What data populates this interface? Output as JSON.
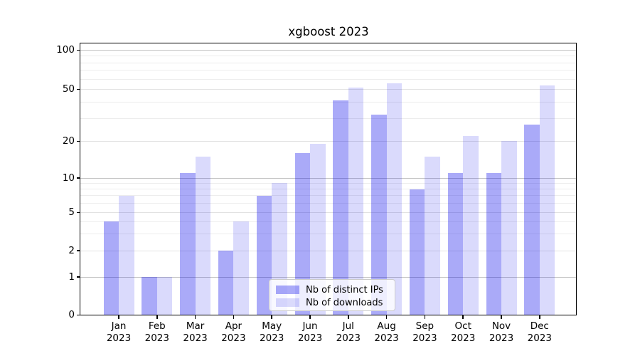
{
  "title": "xgboost 2023",
  "chart_data": {
    "type": "bar",
    "title": "xgboost 2023",
    "categories": [
      "Jan 2023",
      "Feb 2023",
      "Mar 2023",
      "Apr 2023",
      "May 2023",
      "Jun 2023",
      "Jul 2023",
      "Aug 2023",
      "Sep 2023",
      "Oct 2023",
      "Nov 2023",
      "Dec 2023"
    ],
    "month_labels": [
      "Jan",
      "Feb",
      "Mar",
      "Apr",
      "May",
      "Jun",
      "Jul",
      "Aug",
      "Sep",
      "Oct",
      "Nov",
      "Dec"
    ],
    "year_label": "2023",
    "series": [
      {
        "name": "Nb of distinct IPs",
        "values": [
          4,
          1,
          11,
          2,
          7,
          16,
          41,
          32,
          8,
          11,
          11,
          27
        ],
        "color": "#a8a8f8",
        "color_rgba": "rgba(10,10,235,0.345)"
      },
      {
        "name": "Nb of downloads",
        "values": [
          7,
          1,
          15,
          4,
          9,
          19,
          52,
          56,
          15,
          22,
          20,
          54
        ],
        "color": "#d8d8fa",
        "color_rgba": "rgba(10,10,235,0.15)"
      }
    ],
    "xlabel": "",
    "ylabel": "",
    "yscale": "symlog (linear 0-1, logarithmic above 1)",
    "y_ticks": [
      0,
      1,
      2,
      5,
      10,
      20,
      50,
      100
    ],
    "ylim": [
      0,
      113
    ],
    "grid": true,
    "legend_position": "lower center",
    "colors": {
      "background": "#ffffff",
      "grid_major": "#c3c3c3",
      "grid_minor": "#ededed",
      "axis": "#000000"
    }
  }
}
